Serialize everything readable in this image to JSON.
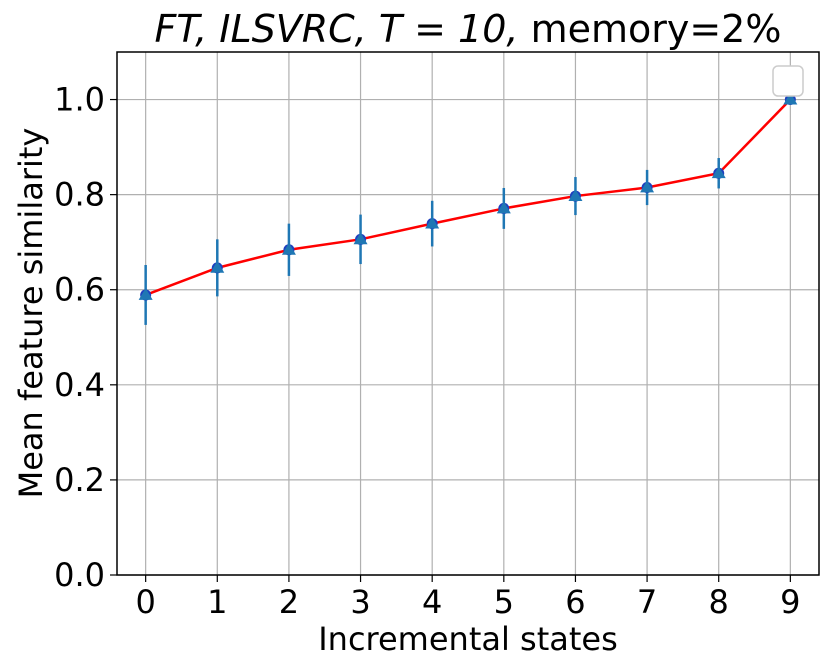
{
  "chart_data": {
    "type": "line",
    "title_italic": "FT, ILSVRC, T = 10,",
    "title_rest": " memory=2%",
    "xlabel": "Incremental states",
    "ylabel": "Mean feature similarity",
    "x": [
      0,
      1,
      2,
      3,
      4,
      5,
      6,
      7,
      8,
      9
    ],
    "x_tick_labels": [
      "0",
      "1",
      "2",
      "3",
      "4",
      "5",
      "6",
      "7",
      "8",
      "9"
    ],
    "y_tick_labels": [
      "0.0",
      "0.2",
      "0.4",
      "0.6",
      "0.8",
      "1.0"
    ],
    "y_ticks": [
      0.0,
      0.2,
      0.4,
      0.6,
      0.8,
      1.0
    ],
    "xlim": [
      -0.4,
      9.4
    ],
    "ylim": [
      0.0,
      1.1
    ],
    "grid": true,
    "legend": "top-right (empty)",
    "series": [
      {
        "values": [
          0.589,
          0.646,
          0.684,
          0.706,
          0.739,
          0.771,
          0.797,
          0.815,
          0.845,
          1.0
        ],
        "error": [
          0.063,
          0.06,
          0.055,
          0.052,
          0.048,
          0.043,
          0.04,
          0.037,
          0.032,
          0.0
        ]
      }
    ],
    "colors": {
      "line": "#ff0000",
      "marker_circle": "#1f3fbf",
      "marker_triangle": "#1f77b4",
      "errorbar": "#1f77b4",
      "grid": "#b0b0b0"
    }
  }
}
